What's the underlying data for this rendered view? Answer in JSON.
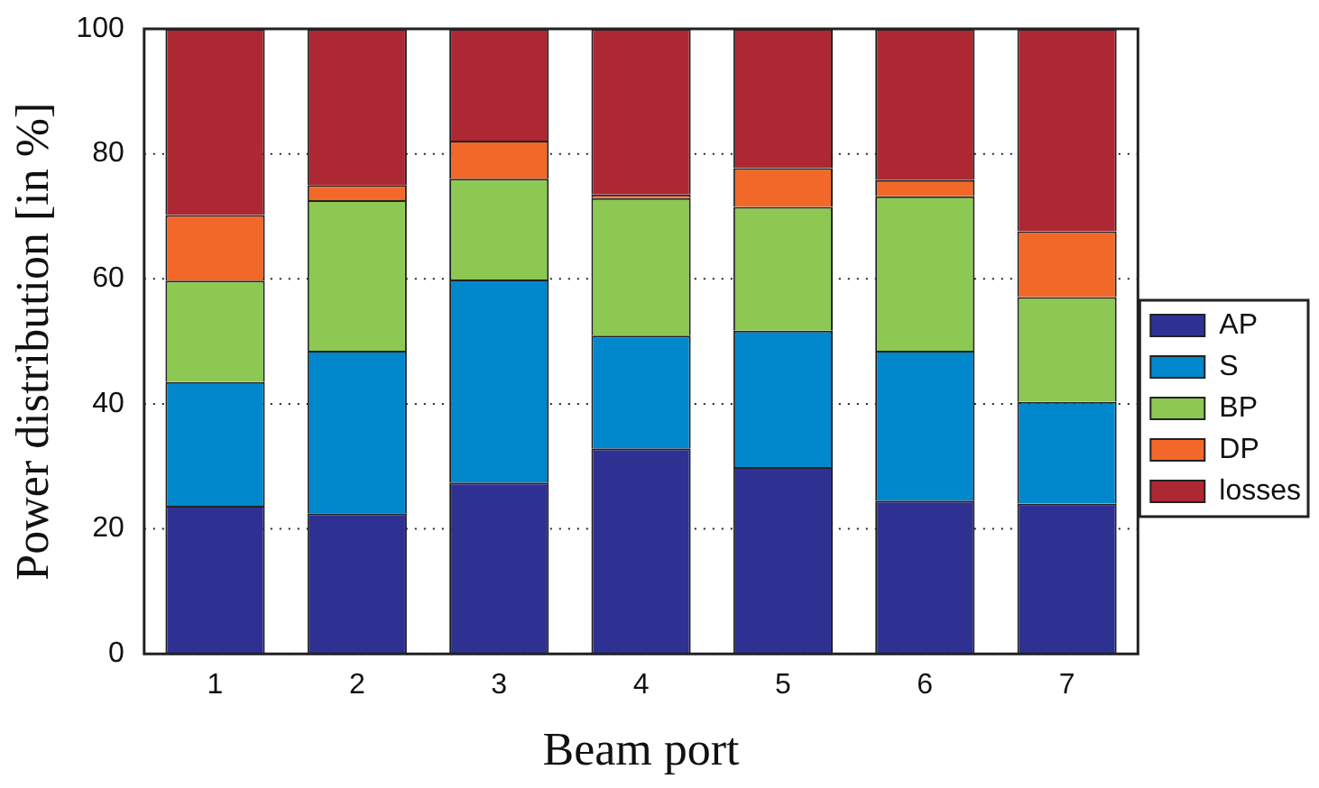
{
  "chart_data": {
    "type": "bar",
    "stacked": true,
    "xlabel": "Beam port",
    "ylabel": "Power distribution [in %]",
    "categories": [
      "1",
      "2",
      "3",
      "4",
      "5",
      "6",
      "7"
    ],
    "series": [
      {
        "name": "AP",
        "color": "#2e3192",
        "values": [
          23.7,
          22.5,
          27.4,
          32.9,
          29.9,
          24.5,
          24.0
        ]
      },
      {
        "name": "S",
        "color": "#0087cc",
        "values": [
          19.8,
          26.0,
          32.5,
          18.0,
          21.8,
          24.0,
          16.3
        ]
      },
      {
        "name": "BP",
        "color": "#8dc853",
        "values": [
          16.2,
          24.1,
          16.1,
          22.0,
          19.8,
          24.7,
          16.8
        ]
      },
      {
        "name": "DP",
        "color": "#f26829",
        "values": [
          10.5,
          2.4,
          6.1,
          0.6,
          6.2,
          2.6,
          10.5
        ]
      },
      {
        "name": "losses",
        "color": "#ad2832",
        "values": [
          29.8,
          25.0,
          17.9,
          26.5,
          22.3,
          24.2,
          32.4
        ]
      }
    ],
    "ylim": [
      0,
      100
    ],
    "yticks": [
      0,
      20,
      40,
      60,
      80,
      100
    ],
    "grid": "y",
    "legend": "right"
  }
}
